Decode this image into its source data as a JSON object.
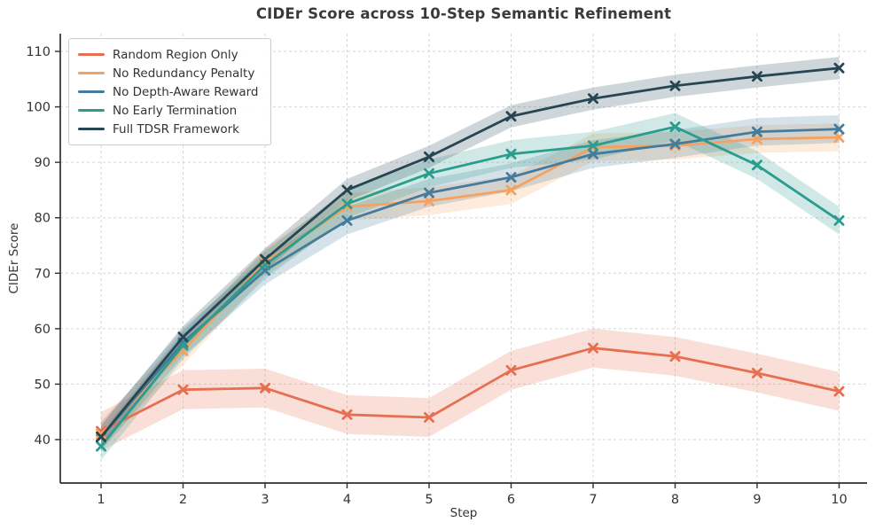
{
  "chart_data": {
    "type": "line",
    "title": "CIDEr Score across 10-Step Semantic Refinement",
    "xlabel": "Step",
    "ylabel": "CIDEr Score",
    "x": [
      1,
      2,
      3,
      4,
      5,
      6,
      7,
      8,
      9,
      10
    ],
    "xtick_labels": [
      "1",
      "2",
      "3",
      "4",
      "5",
      "6",
      "7",
      "8",
      "9",
      "10"
    ],
    "yticks": [
      40,
      50,
      60,
      70,
      80,
      90,
      100,
      110
    ],
    "ylim": [
      33,
      113
    ],
    "grid": true,
    "grid_style": "dashed",
    "legend_position": "upper-left",
    "marker": "x",
    "series": [
      {
        "name": "Random Region Only",
        "color": "#e76f51",
        "band": 3.5,
        "values": [
          41.5,
          49.0,
          49.3,
          44.5,
          44.0,
          52.5,
          56.5,
          55.0,
          52.0,
          48.7
        ]
      },
      {
        "name": "No Redundancy Penalty",
        "color": "#f4a261",
        "band": 2.5,
        "values": [
          41.0,
          56.0,
          72.0,
          82.0,
          83.0,
          85.0,
          92.7,
          93.0,
          94.2,
          94.5
        ]
      },
      {
        "name": "No Depth-Aware Reward",
        "color": "#457b9d",
        "band": 2.5,
        "values": [
          40.5,
          57.5,
          70.5,
          79.5,
          84.5,
          87.3,
          91.5,
          93.3,
          95.5,
          96.0
        ]
      },
      {
        "name": "No Early Termination",
        "color": "#2a9d8f",
        "band": 2.5,
        "values": [
          38.8,
          57.0,
          71.5,
          82.5,
          88.0,
          91.5,
          93.0,
          96.4,
          89.5,
          79.5
        ]
      },
      {
        "name": "Full TDSR Framework",
        "color": "#264653",
        "band": 2.0,
        "values": [
          40.5,
          58.5,
          72.5,
          85.0,
          91.0,
          98.3,
          101.5,
          103.8,
          105.5,
          107.0
        ]
      }
    ]
  }
}
